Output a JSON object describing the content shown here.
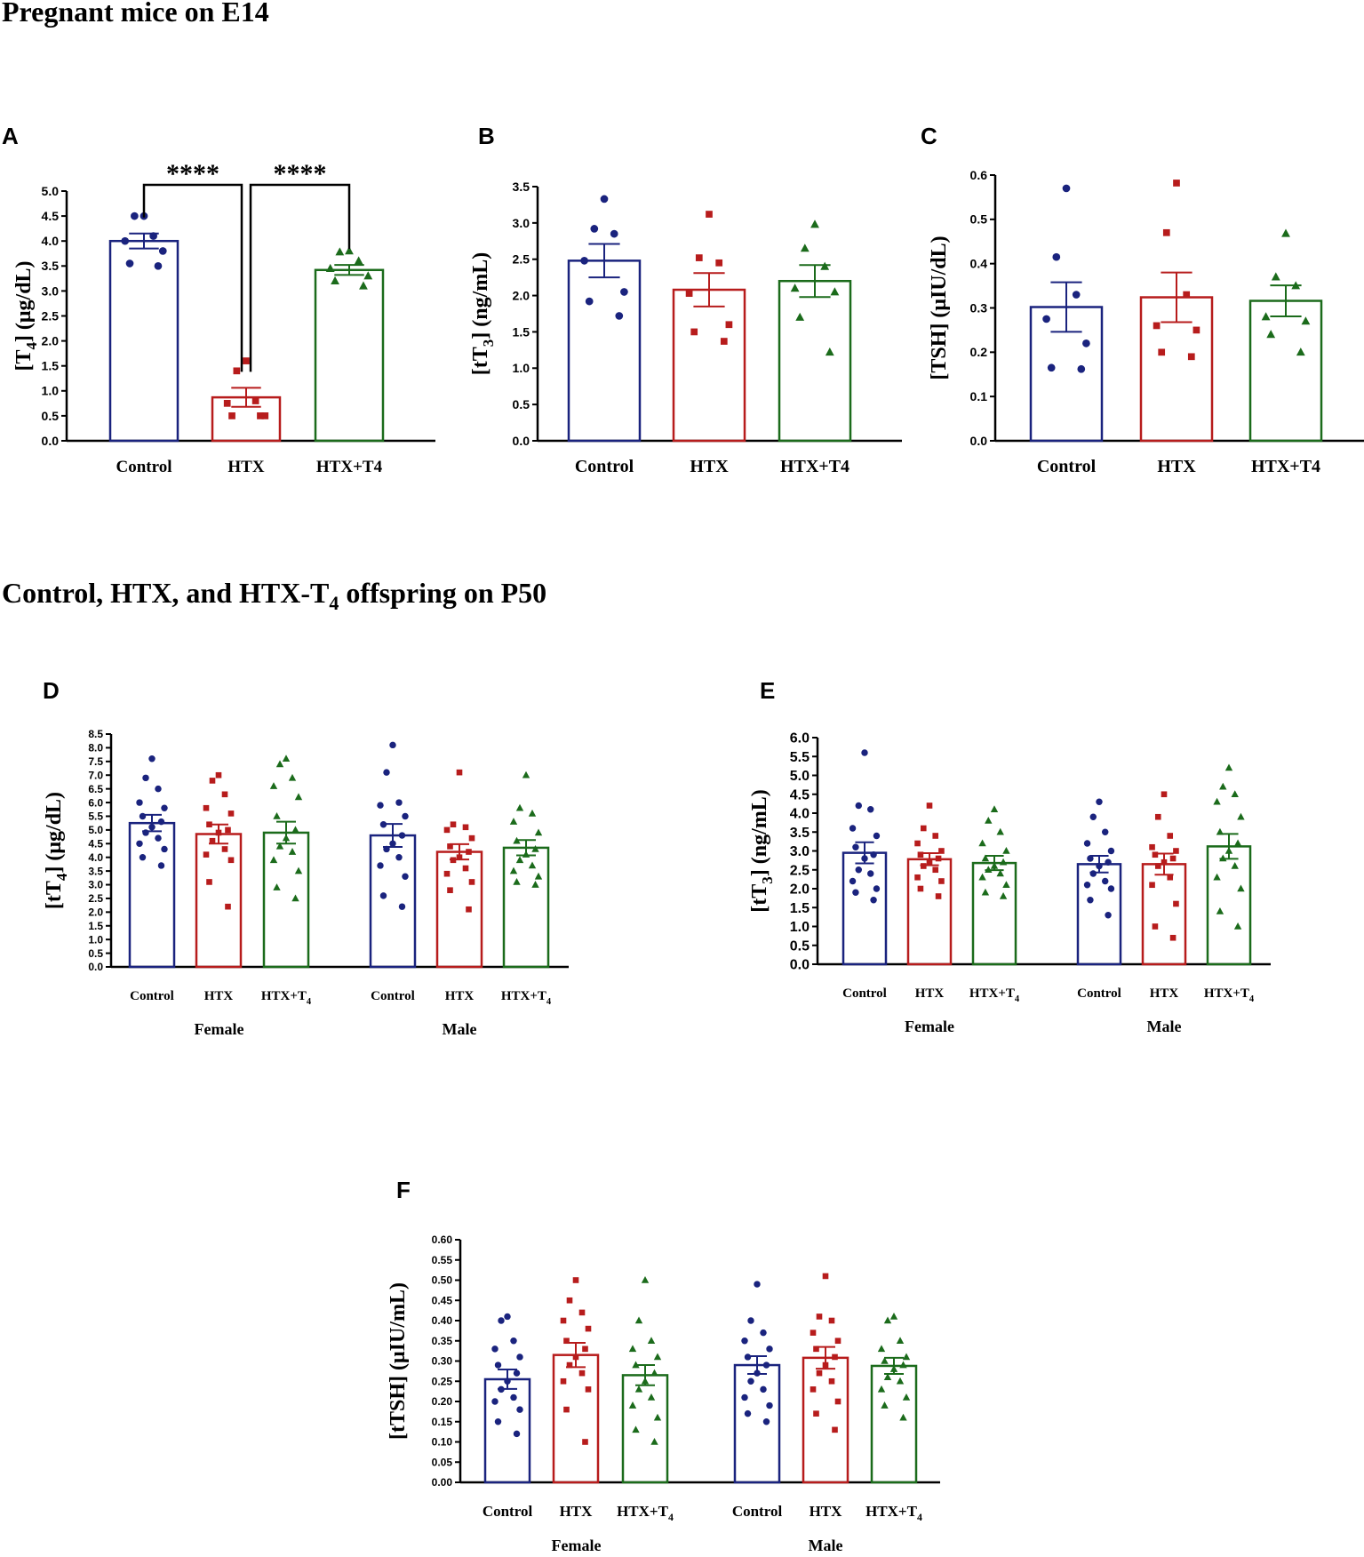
{
  "sections": [
    {
      "text": "Pregnant mice on E14"
    },
    {
      "text": "Control, HTX, and HTX-T",
      "sub": "4",
      "tail": " offspring on P50"
    }
  ],
  "colors": {
    "control": "#1a237e",
    "htx": "#b71c1c",
    "htxt4": "#1b6b1b",
    "axis": "#000000",
    "htx_label": "#e53935"
  },
  "chart_data": [
    {
      "id": "A",
      "type": "bar",
      "letter": "A",
      "ylabel": "[T4] (μg/dL)",
      "ylabel_main": "[T",
      "ylabel_sub": "4",
      "ylabel_tail": "] (μg/dL)",
      "ylim": [
        0,
        5
      ],
      "yticks": [
        "0.0",
        "0.5",
        "1.0",
        "1.5",
        "2.0",
        "2.5",
        "3.0",
        "3.5",
        "4.0",
        "4.5",
        "5.0"
      ],
      "categories": [
        {
          "label": "Control",
          "color": "control",
          "marker": "circle",
          "mean": 4.0,
          "sem": 0.15,
          "points": [
            4.5,
            4.5,
            4.1,
            4.0,
            3.8,
            3.5,
            3.55
          ]
        },
        {
          "label": "HTX",
          "color": "htx",
          "marker": "square",
          "mean": 0.87,
          "sem": 0.19,
          "points": [
            1.6,
            1.4,
            0.8,
            0.75,
            0.5,
            0.5,
            0.5
          ]
        },
        {
          "label": "HTX+T4",
          "color": "htxt4",
          "marker": "triangle",
          "mean": 3.42,
          "sem": 0.1,
          "points": [
            3.8,
            3.78,
            3.6,
            3.45,
            3.3,
            3.2,
            3.1
          ]
        }
      ],
      "significance": [
        {
          "from": 0,
          "to": 1,
          "label": "****"
        },
        {
          "from": 1,
          "to": 2,
          "label": "****"
        }
      ]
    },
    {
      "id": "B",
      "type": "bar",
      "letter": "B",
      "ylabel": "[tT3] (ng/mL)",
      "ylabel_main": "[tT",
      "ylabel_sub": "3",
      "ylabel_tail": "] (ng/mL)",
      "ylim": [
        0,
        3.5
      ],
      "yticks": [
        "0.0",
        "0.5",
        "1.0",
        "1.5",
        "2.0",
        "2.5",
        "3.0",
        "3.5"
      ],
      "categories": [
        {
          "label": "Control",
          "color": "control",
          "marker": "circle",
          "mean": 2.48,
          "sem": 0.23,
          "points": [
            3.33,
            2.92,
            2.85,
            2.48,
            2.05,
            1.92,
            1.72
          ]
        },
        {
          "label": "HTX",
          "color": "htx",
          "marker": "square",
          "mean": 2.08,
          "sem": 0.23,
          "points": [
            3.12,
            2.52,
            2.45,
            2.03,
            1.6,
            1.5,
            1.37
          ]
        },
        {
          "label": "HTX+T4",
          "color": "htxt4",
          "marker": "triangle",
          "mean": 2.2,
          "sem": 0.22,
          "points": [
            2.98,
            2.65,
            2.4,
            2.1,
            2.05,
            1.7,
            1.22
          ]
        }
      ]
    },
    {
      "id": "C",
      "type": "bar",
      "letter": "C",
      "ylabel": "[TSH] (μIU/dL)",
      "ylabel_main": "[TSH] (μIU/dL)",
      "ylabel_sub": "",
      "ylabel_tail": "",
      "ylim": [
        0,
        0.6
      ],
      "yticks": [
        "0.0",
        "0.1",
        "0.2",
        "0.3",
        "0.4",
        "0.5",
        "0.6"
      ],
      "categories": [
        {
          "label": "Control",
          "color": "control",
          "marker": "circle",
          "mean": 0.302,
          "sem": 0.056,
          "points": [
            0.57,
            0.415,
            0.33,
            0.275,
            0.22,
            0.165,
            0.162
          ]
        },
        {
          "label": "HTX",
          "color": "htx",
          "marker": "square",
          "mean": 0.324,
          "sem": 0.056,
          "points": [
            0.582,
            0.47,
            0.33,
            0.26,
            0.25,
            0.2,
            0.19
          ]
        },
        {
          "label": "HTX+T4",
          "color": "htxt4",
          "marker": "triangle",
          "mean": 0.316,
          "sem": 0.035,
          "points": [
            0.468,
            0.37,
            0.35,
            0.28,
            0.27,
            0.24,
            0.2
          ]
        }
      ]
    },
    {
      "id": "D",
      "type": "bar",
      "letter": "D",
      "ylabel": "[tT4] (μg/dL)",
      "ylabel_main": "[tT",
      "ylabel_sub": "4",
      "ylabel_tail": "] (μg/dL)",
      "ylim": [
        0,
        8.5
      ],
      "yticks": [
        "0.0",
        "0.5",
        "1.0",
        "1.5",
        "2.0",
        "2.5",
        "3.0",
        "3.5",
        "4.0",
        "4.5",
        "5.0",
        "5.5",
        "6.0",
        "6.5",
        "7.0",
        "7.5",
        "8.0",
        "8.5"
      ],
      "groups": [
        "Female",
        "Male"
      ],
      "categories": [
        {
          "label": "Control",
          "sub": "",
          "group": 0,
          "color": "control",
          "marker": "circle",
          "mean": 5.25,
          "sem": 0.3,
          "points": [
            7.6,
            6.9,
            6.5,
            6.0,
            5.8,
            5.5,
            5.3,
            5.1,
            4.9,
            4.7,
            4.5,
            4.3,
            4.0,
            3.7
          ]
        },
        {
          "label": "HTX",
          "sub": "",
          "group": 0,
          "color": "htx",
          "marker": "square",
          "mean": 4.85,
          "sem": 0.35,
          "points": [
            7.0,
            6.8,
            6.3,
            5.8,
            5.6,
            5.2,
            5.0,
            4.9,
            4.6,
            4.3,
            4.1,
            3.9,
            3.1,
            2.2
          ]
        },
        {
          "label": "HTX+T",
          "sub": "4",
          "group": 0,
          "color": "htxt4",
          "marker": "triangle",
          "mean": 4.9,
          "sem": 0.4,
          "points": [
            7.6,
            7.4,
            6.9,
            6.6,
            6.2,
            5.5,
            5.0,
            4.7,
            4.4,
            4.2,
            3.9,
            3.5,
            2.9,
            2.5
          ]
        },
        {
          "label": "Control",
          "sub": "",
          "group": 1,
          "color": "control",
          "marker": "circle",
          "mean": 4.8,
          "sem": 0.42,
          "points": [
            8.1,
            7.1,
            6.0,
            5.9,
            5.5,
            5.2,
            4.8,
            4.5,
            4.3,
            4.0,
            3.7,
            3.3,
            2.6,
            2.2
          ]
        },
        {
          "label": "HTX",
          "sub": "",
          "group": 1,
          "color": "htx",
          "marker": "square",
          "mean": 4.2,
          "sem": 0.28,
          "points": [
            7.1,
            5.2,
            5.1,
            5.0,
            4.7,
            4.4,
            4.2,
            4.0,
            3.9,
            3.6,
            3.4,
            3.1,
            2.8,
            2.1
          ]
        },
        {
          "label": "HTX+T",
          "sub": "4",
          "group": 1,
          "color": "htxt4",
          "marker": "triangle",
          "mean": 4.35,
          "sem": 0.28,
          "points": [
            7.0,
            5.8,
            5.6,
            5.3,
            4.9,
            4.6,
            4.3,
            4.1,
            3.9,
            3.7,
            3.5,
            3.3,
            3.1,
            3.0
          ]
        }
      ]
    },
    {
      "id": "E",
      "type": "bar",
      "letter": "E",
      "ylabel": "[tT3] (ng/mL)",
      "ylabel_main": "[tT",
      "ylabel_sub": "3",
      "ylabel_tail": "] (ng/mL)",
      "ylim": [
        0,
        6
      ],
      "yticks": [
        "0.0",
        "0.5",
        "1.0",
        "1.5",
        "2.0",
        "2.5",
        "3.0",
        "3.5",
        "4.0",
        "4.5",
        "5.0",
        "5.5",
        "6.0"
      ],
      "groups": [
        "Female",
        "Male"
      ],
      "categories": [
        {
          "label": "Control",
          "sub": "",
          "group": 0,
          "color": "control",
          "marker": "circle",
          "mean": 2.95,
          "sem": 0.28,
          "points": [
            5.6,
            4.2,
            4.1,
            3.6,
            3.4,
            3.1,
            2.9,
            2.8,
            2.5,
            2.4,
            2.2,
            2.0,
            1.9,
            1.7
          ]
        },
        {
          "label": "HTX",
          "sub": "",
          "group": 0,
          "color": "htx",
          "marker": "square",
          "mean": 2.78,
          "sem": 0.16,
          "points": [
            4.2,
            3.6,
            3.4,
            3.2,
            3.0,
            2.9,
            2.8,
            2.7,
            2.6,
            2.5,
            2.3,
            2.2,
            2.0,
            1.8
          ]
        },
        {
          "label": "HTX+T",
          "sub": "4",
          "group": 0,
          "color": "htxt4",
          "marker": "triangle",
          "mean": 2.68,
          "sem": 0.19,
          "points": [
            4.1,
            3.8,
            3.5,
            3.2,
            3.0,
            2.8,
            2.7,
            2.6,
            2.5,
            2.4,
            2.3,
            2.1,
            1.9,
            1.8
          ]
        },
        {
          "label": "Control",
          "sub": "",
          "group": 1,
          "color": "control",
          "marker": "circle",
          "mean": 2.65,
          "sem": 0.22,
          "points": [
            4.3,
            3.9,
            3.5,
            3.2,
            3.0,
            2.8,
            2.7,
            2.6,
            2.4,
            2.2,
            2.1,
            2.0,
            1.7,
            1.3
          ]
        },
        {
          "label": "HTX",
          "sub": "",
          "group": 1,
          "color": "htx",
          "marker": "square",
          "mean": 2.65,
          "sem": 0.28,
          "points": [
            4.5,
            3.9,
            3.4,
            3.1,
            3.0,
            2.9,
            2.8,
            2.7,
            2.6,
            2.3,
            2.1,
            1.6,
            1.0,
            0.7
          ]
        },
        {
          "label": "HTX+T",
          "sub": "4",
          "group": 1,
          "color": "htxt4",
          "marker": "triangle",
          "mean": 3.12,
          "sem": 0.33,
          "points": [
            5.2,
            4.7,
            4.5,
            4.3,
            3.9,
            3.5,
            3.2,
            3.0,
            2.8,
            2.6,
            2.3,
            2.0,
            1.4,
            1.0
          ]
        }
      ]
    },
    {
      "id": "F",
      "type": "bar",
      "letter": "F",
      "ylabel": "[tTSH] (μIU/mL)",
      "ylabel_main": "[tTSH] (μIU/mL)",
      "ylabel_sub": "",
      "ylabel_tail": "",
      "ylim": [
        0,
        0.6
      ],
      "yticks": [
        "0.00",
        "0.05",
        "0.10",
        "0.15",
        "0.20",
        "0.25",
        "0.30",
        "0.35",
        "0.40",
        "0.45",
        "0.50",
        "0.55",
        "0.60"
      ],
      "groups": [
        "Female",
        "Male"
      ],
      "categories": [
        {
          "label": "Control",
          "sub": "",
          "group": 0,
          "color": "control",
          "marker": "circle",
          "mean": 0.255,
          "sem": 0.024,
          "points": [
            0.41,
            0.4,
            0.35,
            0.33,
            0.31,
            0.29,
            0.27,
            0.25,
            0.23,
            0.21,
            0.2,
            0.18,
            0.15,
            0.12
          ]
        },
        {
          "label": "HTX",
          "sub": "",
          "group": 0,
          "color": "htx",
          "marker": "square",
          "mean": 0.315,
          "sem": 0.03,
          "points": [
            0.5,
            0.45,
            0.42,
            0.4,
            0.38,
            0.35,
            0.33,
            0.31,
            0.29,
            0.27,
            0.25,
            0.23,
            0.18,
            0.1
          ]
        },
        {
          "label": "HTX+T",
          "sub": "4",
          "group": 0,
          "color": "htxt4",
          "marker": "triangle",
          "mean": 0.265,
          "sem": 0.025,
          "points": [
            0.5,
            0.4,
            0.35,
            0.33,
            0.31,
            0.29,
            0.27,
            0.25,
            0.23,
            0.21,
            0.19,
            0.16,
            0.13,
            0.1
          ]
        },
        {
          "label": "Control",
          "sub": "",
          "group": 1,
          "color": "control",
          "marker": "circle",
          "mean": 0.29,
          "sem": 0.022,
          "points": [
            0.49,
            0.4,
            0.37,
            0.35,
            0.33,
            0.31,
            0.29,
            0.27,
            0.25,
            0.23,
            0.21,
            0.19,
            0.17,
            0.15
          ]
        },
        {
          "label": "HTX",
          "sub": "",
          "group": 1,
          "color": "htx",
          "marker": "square",
          "mean": 0.308,
          "sem": 0.027,
          "points": [
            0.51,
            0.41,
            0.4,
            0.37,
            0.35,
            0.33,
            0.31,
            0.29,
            0.27,
            0.25,
            0.23,
            0.2,
            0.17,
            0.13
          ]
        },
        {
          "label": "HTX+T",
          "sub": "4",
          "group": 1,
          "color": "htxt4",
          "marker": "triangle",
          "mean": 0.288,
          "sem": 0.02,
          "points": [
            0.41,
            0.4,
            0.35,
            0.33,
            0.31,
            0.3,
            0.29,
            0.28,
            0.26,
            0.25,
            0.23,
            0.21,
            0.19,
            0.16
          ]
        }
      ]
    }
  ]
}
